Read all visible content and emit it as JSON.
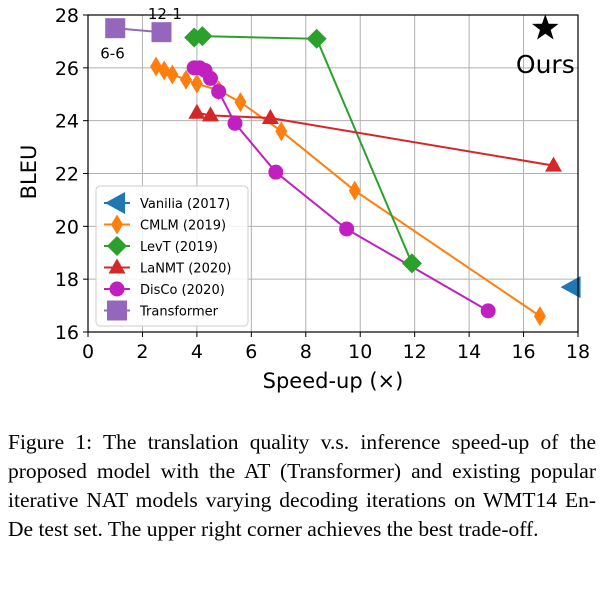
{
  "chart_data": {
    "type": "scatter",
    "xlabel": "Speed-up (×)",
    "ylabel": "BLEU",
    "xlim": [
      0,
      18
    ],
    "ylim": [
      16,
      28
    ],
    "xticks": [
      0,
      2,
      4,
      6,
      8,
      10,
      12,
      14,
      16,
      18
    ],
    "yticks": [
      16,
      18,
      20,
      22,
      24,
      26,
      28
    ],
    "grid": true,
    "legend_position": "lower-left",
    "series": [
      {
        "name": "Vanilia (2017)",
        "color": "#1f77b4",
        "marker": "triangle-left",
        "line": false,
        "x": [
          17.8
        ],
        "y": [
          17.7
        ]
      },
      {
        "name": "CMLM (2019)",
        "color": "#ff7f0e",
        "marker": "thin-diamond",
        "line": true,
        "x": [
          2.5,
          2.8,
          3.1,
          3.6,
          4.0,
          4.8,
          5.6,
          7.1,
          9.8,
          16.6
        ],
        "y": [
          26.05,
          25.9,
          25.75,
          25.55,
          25.4,
          25.15,
          24.7,
          23.6,
          21.35,
          16.6
        ]
      },
      {
        "name": "LevT (2019)",
        "color": "#2ca02c",
        "marker": "diamond",
        "line": true,
        "x": [
          3.9,
          4.2,
          8.4,
          11.9
        ],
        "y": [
          27.15,
          27.2,
          27.1,
          18.6
        ]
      },
      {
        "name": "LaNMT (2020)",
        "color": "#d62728",
        "marker": "triangle-up",
        "line": true,
        "x": [
          4.0,
          4.5,
          6.7,
          17.1
        ],
        "y": [
          24.3,
          24.2,
          24.1,
          22.3
        ]
      },
      {
        "name": "DisCo (2020)",
        "color": "#c020c0",
        "marker": "circle",
        "line": true,
        "x": [
          3.9,
          4.1,
          4.3,
          4.5,
          4.8,
          5.4,
          6.9,
          9.5,
          14.7
        ],
        "y": [
          26.0,
          26.0,
          25.9,
          25.6,
          25.1,
          23.9,
          22.05,
          19.9,
          16.8
        ]
      },
      {
        "name": "Transformer",
        "color": "#9467bd",
        "marker": "square",
        "line": true,
        "x": [
          1.0,
          2.7
        ],
        "y": [
          27.5,
          27.35
        ]
      }
    ],
    "ours": {
      "x": 16.8,
      "y": 27.5,
      "label": "Ours",
      "marker": "star",
      "color": "#000000"
    },
    "annotations": [
      {
        "text": "12-1",
        "x": 2.2,
        "y": 27.85
      },
      {
        "text": "6-6",
        "x": 0.45,
        "y": 26.35
      }
    ]
  },
  "caption": "Figure 1: The translation quality v.s. inference speed-up of the proposed model with the AT (Transformer) and existing popular iterative NAT models varying decoding iterations on WMT14 En-De test set. The upper right corner achieves the best trade-off."
}
